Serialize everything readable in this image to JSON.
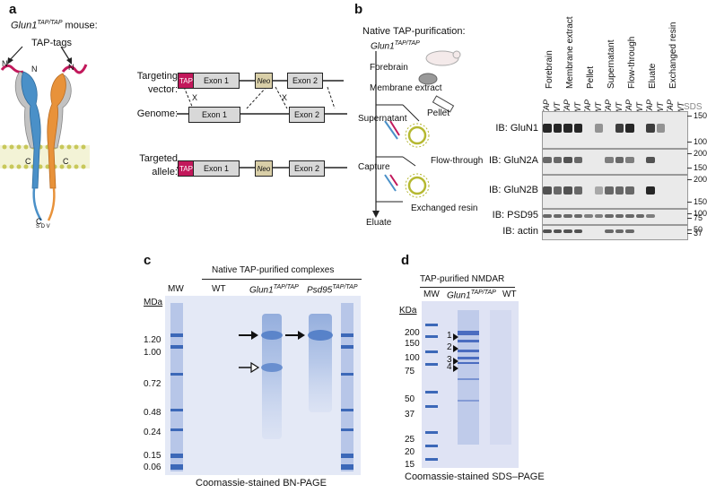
{
  "panel_a": {
    "label": "a",
    "mouse_title_gene": "Glun1",
    "mouse_title_sup": "TAP/TAP",
    "mouse_title_rest": " mouse:",
    "tap_tags": "TAP-tags",
    "targeting_vector": "Targeting\nvector:",
    "genome": "Genome:",
    "targeted_allele": "Targeted\nallele:",
    "tap_box": "TAP",
    "exon1": "Exon 1",
    "exon2": "Exon 2",
    "neo": "Neo",
    "x_mark": "X",
    "terminal_n": "N",
    "terminal_c": "C",
    "colors": {
      "tap": "#c2185b",
      "glun1": "#4a90c8",
      "glun2": "#e8923a",
      "grey": "#b0b0b0",
      "membrane": "#d7d77a"
    }
  },
  "panel_b": {
    "label": "b",
    "title": "Native TAP-purification:",
    "flow_gene": "Glun1",
    "flow_sup": "TAP/TAP",
    "forebrain": "Forebrain",
    "membrane_extract": "Membrane extract",
    "supernatant": "Supernatant",
    "pellet": "Pellet",
    "capture": "Capture",
    "flow_through": "Flow-through",
    "exchanged_resin": "Exchanged resin",
    "eluate": "Eluate",
    "groups": [
      "Forebrain",
      "Membrane extract",
      "Pellet",
      "Supernatant",
      "Flow-through",
      "Eluate",
      "Exchanged resin"
    ],
    "lanes": [
      "TAP",
      "WT",
      "TAP",
      "WT",
      "TAP",
      "WT",
      "TAP",
      "WT",
      "TAP",
      "WT",
      "TAP",
      "WT",
      "TAP",
      "WT"
    ],
    "sds": "SDS",
    "blots": [
      {
        "label": "IB: GluN1",
        "markers": [
          "150",
          "100"
        ]
      },
      {
        "label": "IB: GluN2A",
        "markers": [
          "200",
          "150"
        ]
      },
      {
        "label": "IB: GluN2B",
        "markers": [
          "200",
          "150"
        ]
      },
      {
        "label": "IB: PSD95",
        "markers": [
          "100",
          "75"
        ]
      },
      {
        "label": "IB: actin",
        "markers": [
          "50",
          "37"
        ]
      }
    ]
  },
  "panel_c": {
    "label": "c",
    "header": "Native TAP-purified complexes",
    "mw": "MW",
    "wt": "WT",
    "lane2_gene": "Glun1",
    "lane2_sup": "TAP/TAP",
    "lane3_gene": "Psd95",
    "lane3_sup": "TAP/TAP",
    "unit": "MDa",
    "markers": [
      "1.20",
      "1.00",
      "0.72",
      "0.48",
      "0.24",
      "0.15",
      "0.06"
    ],
    "caption": "Coomassie-stained BN-PAGE",
    "gel_color": "#e4e9f6",
    "band_color": "#4a78c4"
  },
  "panel_d": {
    "label": "d",
    "header": "TAP-purified NMDAR",
    "mw": "MW",
    "lane2_gene": "Glun1",
    "lane2_sup": "TAP/TAP",
    "wt": "WT",
    "unit": "KDa",
    "markers": [
      "200",
      "150",
      "100",
      "75",
      "50",
      "37",
      "25",
      "20",
      "15"
    ],
    "band_numbers": [
      "1",
      "2",
      "3",
      "4"
    ],
    "caption": "Coomassie-stained SDS–PAGE"
  }
}
